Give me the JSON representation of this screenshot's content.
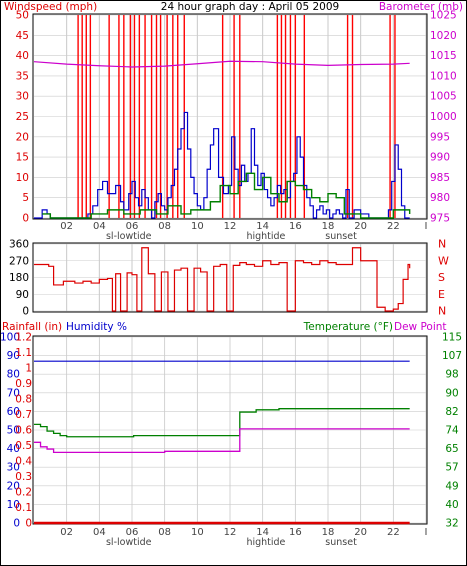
{
  "colors": {
    "windspeed": "#dd0000",
    "gust": "#ff0000",
    "wind_avg": "#0000cc",
    "wind_green": "#008000",
    "barometer": "#cc00cc",
    "direction": "#dd0000",
    "humidity": "#0000cc",
    "rain": "#dd0000",
    "temperature": "#008000",
    "dewpoint": "#cc00cc",
    "grid": "#cccccc",
    "marker": "#c8c8c8"
  },
  "header": {
    "windspeed_title": "Windspeed (mph)",
    "main_title": "24 hour graph day : April 05 2009",
    "barometer_title": "Barometer (mb)"
  },
  "panel3_header": {
    "rain_title": "Rainfall (in)",
    "humidity_title": "Humidity %",
    "temp_title": "Temperature (°F)",
    "dew_title": "Dew Point"
  },
  "chart_data": [
    {
      "type": "line",
      "panel": "wind",
      "title": "24 hour graph day : April 05 2009",
      "xlabel": "",
      "ylabel": "Windspeed (mph)",
      "ylabel_right": "Barometer (mb)",
      "ylim": [
        0,
        50
      ],
      "ylim_right": [
        975,
        1025
      ],
      "yticks": [
        "0",
        "5",
        "10",
        "15",
        "20",
        "25",
        "30",
        "35",
        "40",
        "45",
        "50"
      ],
      "yticks_right": [
        "975",
        "980",
        "985",
        "990",
        "995",
        "1000",
        "1005",
        "1010",
        "1015",
        "1020",
        "1025"
      ],
      "xticks": [
        "02",
        "04",
        "06",
        "08",
        "10",
        "12",
        "14",
        "16",
        "18",
        "20",
        "22",
        "I"
      ],
      "annotations": [
        "sl-lowtide",
        "hightide",
        "sunset"
      ],
      "gust_spikes_hours": [
        2.7,
        2.95,
        3.2,
        3.45,
        4.6,
        5.2,
        5.5,
        5.9,
        6.15,
        6.45,
        6.8,
        7.2,
        7.5,
        7.75,
        8.15,
        8.5,
        8.8,
        9.2,
        11.55,
        12.25,
        12.6,
        14.9,
        15.15,
        15.4,
        15.7,
        16.0,
        16.55,
        19.2,
        19.5,
        21.8,
        22.1
      ],
      "series": [
        {
          "name": "Windspeed (mph)",
          "role": "wind_avg",
          "x": [
            0,
            0.5,
            0.8,
            1.0,
            2.7,
            3.0,
            3.3,
            3.6,
            3.9,
            4.2,
            4.5,
            5.0,
            5.3,
            5.5,
            5.8,
            6.0,
            6.2,
            6.4,
            6.6,
            6.8,
            7.0,
            7.2,
            7.4,
            7.6,
            7.8,
            8.0,
            8.2,
            8.4,
            8.6,
            8.8,
            9.0,
            9.2,
            9.4,
            9.6,
            9.8,
            10.0,
            10.2,
            10.4,
            10.6,
            10.8,
            11.0,
            11.3,
            11.6,
            11.9,
            12.1,
            12.3,
            12.5,
            12.7,
            12.9,
            13.1,
            13.3,
            13.5,
            13.7,
            13.9,
            14.1,
            14.3,
            14.5,
            14.7,
            14.9,
            15.1,
            15.3,
            15.5,
            15.7,
            15.9,
            16.1,
            16.3,
            16.5,
            16.7,
            16.9,
            17.1,
            17.3,
            17.5,
            17.7,
            17.9,
            18.1,
            18.3,
            18.5,
            18.7,
            18.9,
            19.1,
            19.3,
            19.6,
            20.0,
            20.5,
            21.0,
            21.4,
            21.7,
            21.9,
            22.1,
            22.3,
            22.5,
            22.7,
            23.0
          ],
          "y": [
            0,
            2,
            1,
            0,
            0,
            0,
            1,
            3,
            7,
            9,
            6,
            8,
            4,
            2,
            6,
            9,
            5,
            3,
            7,
            5,
            2,
            0,
            4,
            6,
            3,
            2,
            5,
            8,
            12,
            17,
            22,
            26,
            17,
            10,
            6,
            3,
            2,
            5,
            12,
            18,
            22,
            10,
            6,
            8,
            20,
            12,
            8,
            13,
            9,
            11,
            22,
            13,
            8,
            11,
            7,
            5,
            3,
            5,
            8,
            6,
            7,
            5,
            9,
            11,
            20,
            15,
            8,
            5,
            3,
            0,
            2,
            3,
            1,
            2,
            0,
            1,
            2,
            1,
            0,
            7,
            0,
            2,
            1,
            0,
            0,
            0,
            2,
            9,
            18,
            12,
            3,
            0,
            0
          ]
        },
        {
          "name": "Wind (green)",
          "role": "wind_green",
          "x": [
            0.5,
            1.0,
            2.8,
            3.5,
            4.5,
            5.5,
            6.5,
            7.5,
            8.2,
            9.0,
            9.6,
            10.2,
            10.8,
            11.4,
            12.0,
            12.5,
            13.0,
            13.5,
            14.0,
            14.5,
            15.0,
            15.5,
            16.0,
            16.5,
            17.0,
            17.5,
            18.0,
            18.5,
            19.0,
            20.0,
            21.0,
            22.0,
            23.0
          ],
          "y": [
            1,
            0,
            0,
            1,
            2,
            1,
            2,
            1,
            3,
            1,
            2,
            2,
            4,
            8,
            6,
            9,
            11,
            7,
            10,
            6,
            4,
            9,
            8,
            7,
            5,
            4,
            6,
            5,
            1,
            0,
            0,
            2,
            1
          ]
        },
        {
          "name": "Barometer (mb)",
          "role": "barometer",
          "axis": "right",
          "x": [
            0,
            2,
            4,
            6,
            8,
            10,
            12,
            14,
            16,
            18,
            20,
            22,
            23
          ],
          "y": [
            1013.5,
            1012.9,
            1012.5,
            1012.2,
            1012.4,
            1013.0,
            1013.6,
            1013.5,
            1012.9,
            1012.6,
            1012.8,
            1012.9,
            1013.1
          ]
        }
      ]
    },
    {
      "type": "line",
      "panel": "direction",
      "ylim": [
        0,
        360
      ],
      "yticks": [
        "0",
        "90",
        "180",
        "270",
        "360"
      ],
      "compass": [
        "N",
        "W",
        "S",
        "E",
        "N"
      ],
      "series": [
        {
          "name": "Wind direction",
          "role": "direction",
          "x": [
            0,
            0.6,
            0.9,
            1.2,
            1.8,
            2.5,
            3.0,
            3.5,
            4.0,
            4.5,
            4.8,
            5.0,
            5.3,
            5.7,
            6.0,
            6.3,
            6.6,
            7.0,
            7.4,
            7.8,
            8.2,
            8.6,
            9.0,
            9.4,
            9.8,
            10.2,
            10.6,
            11.0,
            11.4,
            11.8,
            12.2,
            12.6,
            13.0,
            13.5,
            14.0,
            14.5,
            15.0,
            15.5,
            16.0,
            16.5,
            17.0,
            17.5,
            18.0,
            18.5,
            19.0,
            19.5,
            20.0,
            20.5,
            21.0,
            21.5,
            22.0,
            22.3,
            22.6,
            22.9,
            23.0
          ],
          "y": [
            250,
            250,
            240,
            140,
            160,
            150,
            160,
            150,
            170,
            175,
            0,
            200,
            0,
            205,
            195,
            0,
            340,
            200,
            0,
            210,
            0,
            220,
            230,
            0,
            230,
            210,
            0,
            240,
            250,
            0,
            245,
            260,
            250,
            240,
            270,
            250,
            260,
            0,
            270,
            260,
            250,
            270,
            260,
            250,
            250,
            340,
            270,
            270,
            20,
            0,
            10,
            40,
            170,
            250,
            230
          ]
        }
      ]
    },
    {
      "type": "line",
      "panel": "rain_humidity_temp",
      "ylim": [
        0,
        100
      ],
      "ylim_rain": [
        0,
        1.2
      ],
      "ylim_right": [
        32,
        115
      ],
      "yticks": [
        "0",
        "10",
        "20",
        "30",
        "40",
        "50",
        "60",
        "70",
        "80",
        "90",
        "100"
      ],
      "yticks_rain": [
        "0",
        "0.1",
        "0.2",
        "0.3",
        "0.4",
        "0.5",
        "0.6",
        "0.7",
        "0.8",
        "0.9",
        "1",
        "1.1",
        "1.2"
      ],
      "yticks_right": [
        "32",
        "40",
        "49",
        "57",
        "65",
        "74",
        "82",
        "90",
        "98",
        "107",
        "115"
      ],
      "xticks": [
        "02",
        "04",
        "06",
        "08",
        "10",
        "12",
        "14",
        "16",
        "18",
        "20",
        "22",
        "I"
      ],
      "annotations": [
        "sl-lowtide",
        "hightide",
        "sunset"
      ],
      "series": [
        {
          "name": "Humidity %",
          "role": "humidity",
          "x": [
            0,
            23
          ],
          "y": [
            87,
            87
          ]
        },
        {
          "name": "Rainfall (in)",
          "role": "rain",
          "x": [
            0,
            23
          ],
          "y": [
            0,
            0
          ]
        },
        {
          "name": "Temperature (°F)",
          "role": "temperature",
          "x": [
            0,
            0.4,
            0.8,
            1.2,
            1.6,
            2.0,
            3.0,
            4.0,
            5.0,
            6.0,
            6.1,
            8.0,
            10.0,
            12.0,
            12.5,
            12.6,
            13.0,
            13.5,
            13.6,
            15.0,
            17.0,
            20.0,
            22.0,
            23.0
          ],
          "y": [
            76,
            75,
            73,
            72,
            71,
            70.5,
            70.5,
            70.5,
            70.5,
            70.5,
            71,
            71,
            71,
            71,
            71,
            81.5,
            81.5,
            81.5,
            82.5,
            83,
            83,
            83,
            83,
            83
          ]
        },
        {
          "name": "Dew Point",
          "role": "dewpoint",
          "x": [
            0,
            0.4,
            0.8,
            1.2,
            2.0,
            4.0,
            6.0,
            8.0,
            10.0,
            12.0,
            12.5,
            12.6,
            15.0,
            20.0,
            23.0
          ],
          "y": [
            68,
            66,
            65,
            63.5,
            63.5,
            63.5,
            63.5,
            64,
            64,
            64,
            64,
            74,
            74,
            74,
            74
          ]
        }
      ]
    }
  ]
}
